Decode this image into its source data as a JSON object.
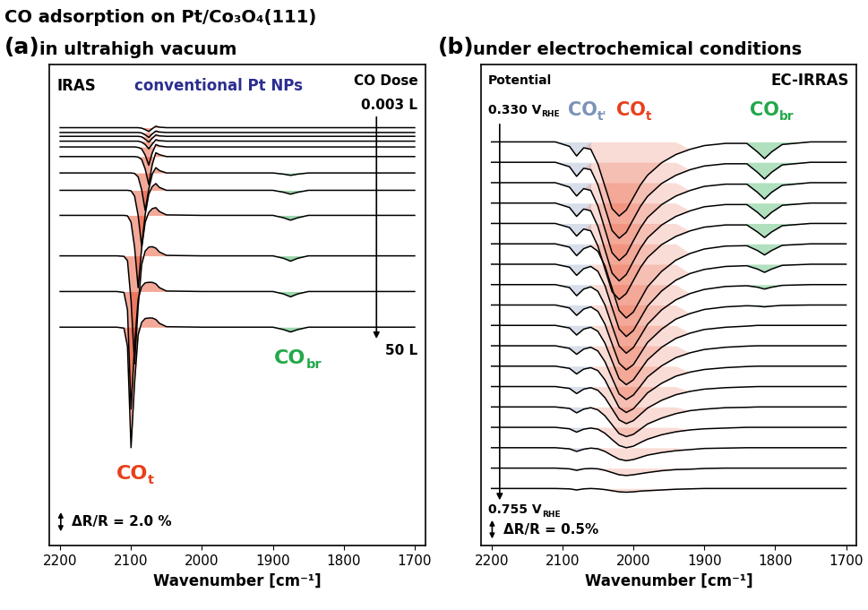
{
  "title": "CO adsorption on Pt/Co₃O₄(111)",
  "chart_data": [
    {
      "type": "line",
      "panel": "(a)",
      "title": "in ultrahigh vacuum",
      "x_label": "Wavenumber [cm⁻¹]",
      "method": {
        "text": "IRAS"
      },
      "note": {
        "text": "conventional Pt NPs",
        "color": "#2b2e8f"
      },
      "series_label": {
        "text": "CO Dose"
      },
      "first_label": {
        "text": "0.003 L"
      },
      "last_label": {
        "text": "50 L"
      },
      "peaks": [
        {
          "text": "CO",
          "subscript": "t",
          "color": "#e8401c"
        },
        {
          "text": "CO",
          "subscript": "br",
          "color": "#22a84a"
        }
      ],
      "scale_bar": {
        "value": 2.0,
        "label": "ΔR/R = 2.0 %"
      },
      "color": "#000000",
      "xlim": [
        2215,
        1685
      ],
      "xticks": [
        2200,
        2100,
        2000,
        1900,
        1800,
        1700
      ],
      "ylim": [
        0,
        50
      ],
      "tick_labels": "x",
      "grid": false,
      "x": [
        2200,
        2150,
        2120,
        2110,
        2105,
        2100,
        2095,
        2090,
        2085,
        2080,
        2075,
        2070,
        2065,
        2060,
        2050,
        2000,
        1950,
        1900,
        1885,
        1875,
        1865,
        1850,
        1800,
        1750,
        1700
      ],
      "series": [
        {
          "values": [
            43.4,
            43.4,
            43.4,
            43.4,
            43.4,
            43.4,
            43.4,
            43.4,
            43.35,
            43.2,
            43.0,
            43.3,
            43.55,
            43.45,
            43.4,
            43.4,
            43.4,
            43.4,
            43.4,
            43.4,
            43.4,
            43.4,
            43.4,
            43.4,
            43.4
          ]
        },
        {
          "values": [
            42.9,
            42.9,
            42.9,
            42.9,
            42.9,
            42.9,
            42.9,
            42.9,
            42.85,
            42.65,
            42.4,
            42.75,
            43.05,
            42.95,
            42.9,
            42.9,
            42.9,
            42.9,
            42.9,
            42.9,
            42.9,
            42.9,
            42.9,
            42.9,
            42.9
          ]
        },
        {
          "values": [
            42.5,
            42.5,
            42.5,
            42.5,
            42.5,
            42.5,
            42.5,
            42.5,
            42.45,
            42.2,
            41.9,
            42.3,
            42.65,
            42.55,
            42.5,
            42.5,
            42.5,
            42.5,
            42.5,
            42.5,
            42.5,
            42.5,
            42.5,
            42.5,
            42.5
          ]
        },
        {
          "values": [
            42.0,
            42.0,
            42.0,
            42.0,
            42.0,
            42.0,
            42.0,
            42.0,
            41.9,
            41.65,
            41.2,
            41.7,
            42.15,
            42.05,
            42.0,
            42.0,
            42.0,
            42.0,
            42.0,
            42.0,
            42.0,
            42.0,
            42.0,
            42.0,
            42.0
          ]
        },
        {
          "values": [
            41.4,
            41.4,
            41.4,
            41.4,
            41.4,
            41.4,
            41.4,
            41.35,
            41.2,
            40.55,
            39.5,
            40.8,
            41.65,
            41.5,
            41.4,
            41.4,
            41.4,
            41.4,
            41.4,
            41.4,
            41.4,
            41.4,
            41.4,
            41.4,
            41.4
          ]
        },
        {
          "values": [
            40.4,
            40.4,
            40.4,
            40.4,
            40.4,
            40.4,
            40.4,
            40.35,
            40.1,
            39.1,
            37.5,
            39.6,
            40.8,
            40.6,
            40.4,
            40.4,
            40.4,
            40.4,
            40.4,
            40.4,
            40.4,
            40.4,
            40.4,
            40.4,
            40.4
          ]
        },
        {
          "values": [
            38.7,
            38.7,
            38.7,
            38.7,
            38.7,
            38.7,
            38.65,
            38.3,
            36.95,
            34.8,
            37.0,
            38.6,
            39.25,
            38.95,
            38.7,
            38.7,
            38.7,
            38.7,
            38.58,
            38.45,
            38.58,
            38.7,
            38.7,
            38.7,
            38.7
          ]
        },
        {
          "values": [
            36.9,
            36.9,
            36.9,
            36.9,
            36.9,
            36.85,
            36.3,
            34.3,
            31.1,
            34.4,
            36.5,
            37.3,
            37.6,
            37.2,
            36.9,
            36.9,
            36.9,
            36.9,
            36.7,
            36.5,
            36.7,
            36.9,
            36.9,
            36.9,
            36.9
          ]
        },
        {
          "values": [
            34.3,
            34.3,
            34.3,
            34.3,
            34.25,
            33.6,
            31.0,
            26.8,
            30.9,
            33.6,
            34.6,
            35.0,
            35.1,
            34.7,
            34.35,
            34.3,
            34.3,
            34.3,
            34.05,
            33.8,
            34.05,
            34.3,
            34.3,
            34.3,
            34.3
          ]
        },
        {
          "values": [
            30.1,
            30.1,
            30.1,
            30.05,
            29.6,
            25.5,
            18.9,
            24.8,
            29.2,
            30.6,
            31.0,
            31.05,
            30.9,
            30.5,
            30.15,
            30.1,
            30.1,
            30.1,
            29.85,
            29.55,
            29.85,
            30.1,
            30.1,
            30.1,
            30.1
          ]
        },
        {
          "values": [
            26.4,
            26.4,
            26.4,
            26.3,
            24.5,
            14.2,
            20.8,
            25.6,
            26.9,
            27.3,
            27.35,
            27.35,
            27.2,
            26.8,
            26.45,
            26.4,
            26.4,
            26.4,
            26.15,
            25.85,
            26.15,
            26.4,
            26.4,
            26.4,
            26.4
          ]
        },
        {
          "values": [
            22.7,
            22.7,
            22.7,
            22.6,
            20.7,
            10.2,
            16.9,
            21.9,
            23.2,
            23.6,
            23.65,
            23.65,
            23.5,
            23.1,
            22.75,
            22.7,
            22.7,
            22.7,
            22.45,
            22.2,
            22.45,
            22.7,
            22.7,
            22.7,
            22.7
          ]
        }
      ]
    },
    {
      "type": "line",
      "panel": "(b)",
      "title": "under electrochemical conditions",
      "x_label": "Wavenumber [cm⁻¹]",
      "method": {
        "text": "EC-IRRAS"
      },
      "series_label": {
        "text": "Potential"
      },
      "first_label": {
        "text": "0.330 V",
        "subscript": "RHE"
      },
      "last_label": {
        "text": "0.755 V",
        "subscript": "RHE"
      },
      "peaks": [
        {
          "text": "CO",
          "subscript": "t'",
          "color": "#7b93b8"
        },
        {
          "text": "CO",
          "subscript": "t",
          "color": "#e8401c"
        },
        {
          "text": "CO",
          "subscript": "br",
          "color": "#22a84a"
        }
      ],
      "scale_bar": {
        "value": 0.5,
        "label": "ΔR/R = 0.5%"
      },
      "color": "#000000",
      "xlim": [
        2215,
        1685
      ],
      "xticks": [
        2200,
        2100,
        2000,
        1900,
        1800,
        1700
      ],
      "ylim": [
        0,
        13
      ],
      "tick_labels": "x",
      "grid": false,
      "x": [
        2200,
        2150,
        2110,
        2090,
        2080,
        2070,
        2060,
        2050,
        2040,
        2030,
        2020,
        2010,
        2000,
        1990,
        1980,
        1960,
        1940,
        1920,
        1900,
        1870,
        1840,
        1825,
        1815,
        1805,
        1790,
        1750,
        1700
      ],
      "series": [
        {
          "values": [
            10.9,
            10.9,
            10.9,
            10.78,
            10.52,
            10.74,
            10.7,
            10.3,
            9.7,
            9.1,
            8.9,
            9.06,
            9.4,
            9.74,
            10.0,
            10.34,
            10.56,
            10.7,
            10.8,
            10.86,
            10.86,
            10.63,
            10.45,
            10.63,
            10.83,
            10.9,
            10.9
          ]
        },
        {
          "values": [
            10.35,
            10.35,
            10.35,
            10.23,
            9.97,
            10.19,
            10.15,
            9.74,
            9.12,
            8.51,
            8.3,
            8.46,
            8.81,
            9.16,
            9.43,
            9.78,
            10.0,
            10.15,
            10.25,
            10.31,
            10.31,
            10.08,
            9.9,
            10.08,
            10.28,
            10.35,
            10.35
          ]
        },
        {
          "values": [
            9.8,
            9.8,
            9.8,
            9.68,
            9.44,
            9.64,
            9.59,
            9.17,
            8.54,
            7.91,
            7.7,
            7.87,
            8.23,
            8.58,
            8.86,
            9.21,
            9.44,
            9.59,
            9.7,
            9.76,
            9.76,
            9.54,
            9.36,
            9.54,
            9.73,
            9.8,
            9.8
          ]
        },
        {
          "values": [
            9.25,
            9.25,
            9.25,
            9.13,
            8.89,
            9.09,
            9.04,
            8.62,
            7.99,
            7.36,
            7.15,
            7.32,
            7.68,
            8.03,
            8.31,
            8.66,
            8.89,
            9.04,
            9.15,
            9.21,
            9.21,
            9.0,
            8.83,
            9.0,
            9.19,
            9.25,
            9.25
          ]
        },
        {
          "values": [
            8.7,
            8.7,
            8.7,
            8.59,
            8.36,
            8.55,
            8.5,
            8.09,
            7.47,
            6.86,
            6.65,
            6.81,
            7.16,
            7.51,
            7.78,
            8.13,
            8.35,
            8.5,
            8.6,
            8.66,
            8.66,
            8.47,
            8.32,
            8.47,
            8.64,
            8.7,
            8.7
          ]
        },
        {
          "values": [
            8.15,
            8.15,
            8.15,
            8.06,
            7.83,
            8.02,
            8.09,
            7.95,
            7.55,
            6.95,
            6.35,
            6.15,
            6.31,
            6.65,
            6.99,
            7.41,
            7.71,
            7.89,
            8.01,
            8.09,
            8.1,
            7.97,
            7.85,
            7.97,
            8.11,
            8.15,
            8.15
          ]
        },
        {
          "values": [
            7.6,
            7.6,
            7.6,
            7.52,
            7.3,
            7.48,
            7.54,
            7.41,
            7.02,
            6.43,
            5.85,
            5.65,
            5.81,
            6.14,
            6.47,
            6.88,
            7.17,
            7.35,
            7.46,
            7.54,
            7.56,
            7.47,
            7.38,
            7.47,
            7.57,
            7.6,
            7.6
          ]
        },
        {
          "values": [
            7.05,
            7.05,
            7.05,
            6.97,
            6.75,
            6.93,
            6.99,
            6.87,
            6.5,
            5.94,
            5.39,
            5.2,
            5.35,
            5.66,
            5.98,
            6.37,
            6.64,
            6.81,
            6.92,
            7.0,
            7.02,
            6.98,
            6.93,
            6.98,
            7.03,
            7.05,
            7.05
          ]
        },
        {
          "values": [
            6.5,
            6.5,
            6.5,
            6.42,
            6.22,
            6.39,
            6.45,
            6.33,
            5.98,
            5.45,
            4.93,
            4.75,
            4.89,
            5.19,
            5.49,
            5.85,
            6.12,
            6.27,
            6.38,
            6.45,
            6.48,
            6.47,
            6.45,
            6.47,
            6.49,
            6.5,
            6.5
          ]
        },
        {
          "values": [
            5.95,
            5.95,
            5.95,
            5.88,
            5.69,
            5.85,
            5.9,
            5.79,
            5.47,
            4.99,
            4.51,
            4.35,
            4.48,
            4.75,
            5.02,
            5.36,
            5.6,
            5.74,
            5.84,
            5.9,
            5.93,
            5.95,
            5.95,
            5.95,
            5.95,
            5.95,
            5.95
          ]
        },
        {
          "values": [
            5.4,
            5.4,
            5.4,
            5.33,
            5.17,
            5.31,
            5.36,
            5.26,
            4.97,
            4.53,
            4.1,
            3.95,
            4.07,
            4.31,
            4.56,
            4.86,
            5.08,
            5.21,
            5.3,
            5.36,
            5.39,
            5.4,
            5.4,
            5.4,
            5.4,
            5.4,
            5.4
          ]
        },
        {
          "values": [
            4.85,
            4.85,
            4.85,
            4.79,
            4.64,
            4.77,
            4.81,
            4.73,
            4.48,
            4.1,
            3.73,
            3.6,
            3.7,
            3.91,
            4.13,
            4.39,
            4.58,
            4.69,
            4.76,
            4.81,
            4.84,
            4.85,
            4.85,
            4.85,
            4.85,
            4.85,
            4.85
          ]
        },
        {
          "values": [
            4.3,
            4.3,
            4.3,
            4.25,
            4.11,
            4.23,
            4.27,
            4.2,
            4.0,
            3.7,
            3.4,
            3.3,
            3.38,
            3.55,
            3.72,
            3.93,
            4.08,
            4.17,
            4.23,
            4.27,
            4.29,
            4.3,
            4.3,
            4.3,
            4.3,
            4.3,
            4.3
          ]
        },
        {
          "values": [
            3.75,
            3.75,
            3.75,
            3.71,
            3.59,
            3.69,
            3.73,
            3.67,
            3.51,
            3.27,
            3.03,
            2.95,
            3.01,
            3.15,
            3.29,
            3.45,
            3.57,
            3.65,
            3.69,
            3.73,
            3.74,
            3.75,
            3.75,
            3.75,
            3.75,
            3.75,
            3.75
          ]
        },
        {
          "values": [
            3.2,
            3.2,
            3.2,
            3.16,
            3.07,
            3.15,
            3.18,
            3.15,
            3.04,
            2.87,
            2.71,
            2.65,
            2.69,
            2.79,
            2.88,
            3.0,
            3.08,
            3.13,
            3.16,
            3.18,
            3.2,
            3.2,
            3.2,
            3.2,
            3.2,
            3.2,
            3.2
          ]
        },
        {
          "values": [
            2.65,
            2.65,
            2.65,
            2.62,
            2.55,
            2.61,
            2.64,
            2.62,
            2.55,
            2.44,
            2.34,
            2.3,
            2.33,
            2.39,
            2.45,
            2.52,
            2.57,
            2.6,
            2.63,
            2.64,
            2.65,
            2.65,
            2.65,
            2.65,
            2.65,
            2.65,
            2.65
          ]
        },
        {
          "values": [
            2.1,
            2.1,
            2.1,
            2.08,
            2.04,
            2.08,
            2.09,
            2.08,
            2.04,
            1.98,
            1.92,
            1.9,
            1.92,
            1.95,
            1.98,
            2.03,
            2.06,
            2.07,
            2.09,
            2.1,
            2.1,
            2.1,
            2.1,
            2.1,
            2.1,
            2.1,
            2.1
          ]
        },
        {
          "values": [
            1.55,
            1.55,
            1.55,
            1.54,
            1.51,
            1.54,
            1.55,
            1.54,
            1.52,
            1.49,
            1.46,
            1.45,
            1.46,
            1.48,
            1.49,
            1.51,
            1.53,
            1.54,
            1.55,
            1.55,
            1.55,
            1.55,
            1.55,
            1.55,
            1.55,
            1.55,
            1.55
          ]
        }
      ]
    }
  ]
}
